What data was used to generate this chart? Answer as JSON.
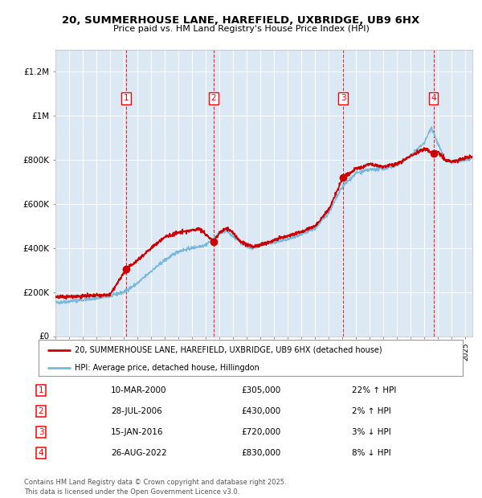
{
  "title1": "20, SUMMERHOUSE LANE, HAREFIELD, UXBRIDGE, UB9 6HX",
  "title2": "Price paid vs. HM Land Registry's House Price Index (HPI)",
  "plot_bg": "#dce9f5",
  "ylim": [
    0,
    1300000
  ],
  "yticks": [
    0,
    200000,
    400000,
    600000,
    800000,
    1000000,
    1200000
  ],
  "ytick_labels": [
    "£0",
    "£200K",
    "£400K",
    "£600K",
    "£800K",
    "£1M",
    "£1.2M"
  ],
  "red_line_color": "#cc0000",
  "blue_line_color": "#7ab8d9",
  "sale_prices": [
    305000,
    430000,
    720000,
    830000
  ],
  "sale_labels": [
    "1",
    "2",
    "3",
    "4"
  ],
  "vline_x": [
    2000.19,
    2006.57,
    2016.04,
    2022.65
  ],
  "legend_entry1": "20, SUMMERHOUSE LANE, HAREFIELD, UXBRIDGE, UB9 6HX (detached house)",
  "legend_entry2": "HPI: Average price, detached house, Hillingdon",
  "table_entries": [
    {
      "num": "1",
      "date": "10-MAR-2000",
      "price": "£305,000",
      "hpi": "22% ↑ HPI"
    },
    {
      "num": "2",
      "date": "28-JUL-2006",
      "price": "£430,000",
      "hpi": "2% ↑ HPI"
    },
    {
      "num": "3",
      "date": "15-JAN-2016",
      "price": "£720,000",
      "hpi": "3% ↓ HPI"
    },
    {
      "num": "4",
      "date": "26-AUG-2022",
      "price": "£830,000",
      "hpi": "8% ↓ HPI"
    }
  ],
  "footnote1": "Contains HM Land Registry data © Crown copyright and database right 2025.",
  "footnote2": "This data is licensed under the Open Government Licence v3.0.",
  "xmin": 1995.0,
  "xmax": 2025.5
}
